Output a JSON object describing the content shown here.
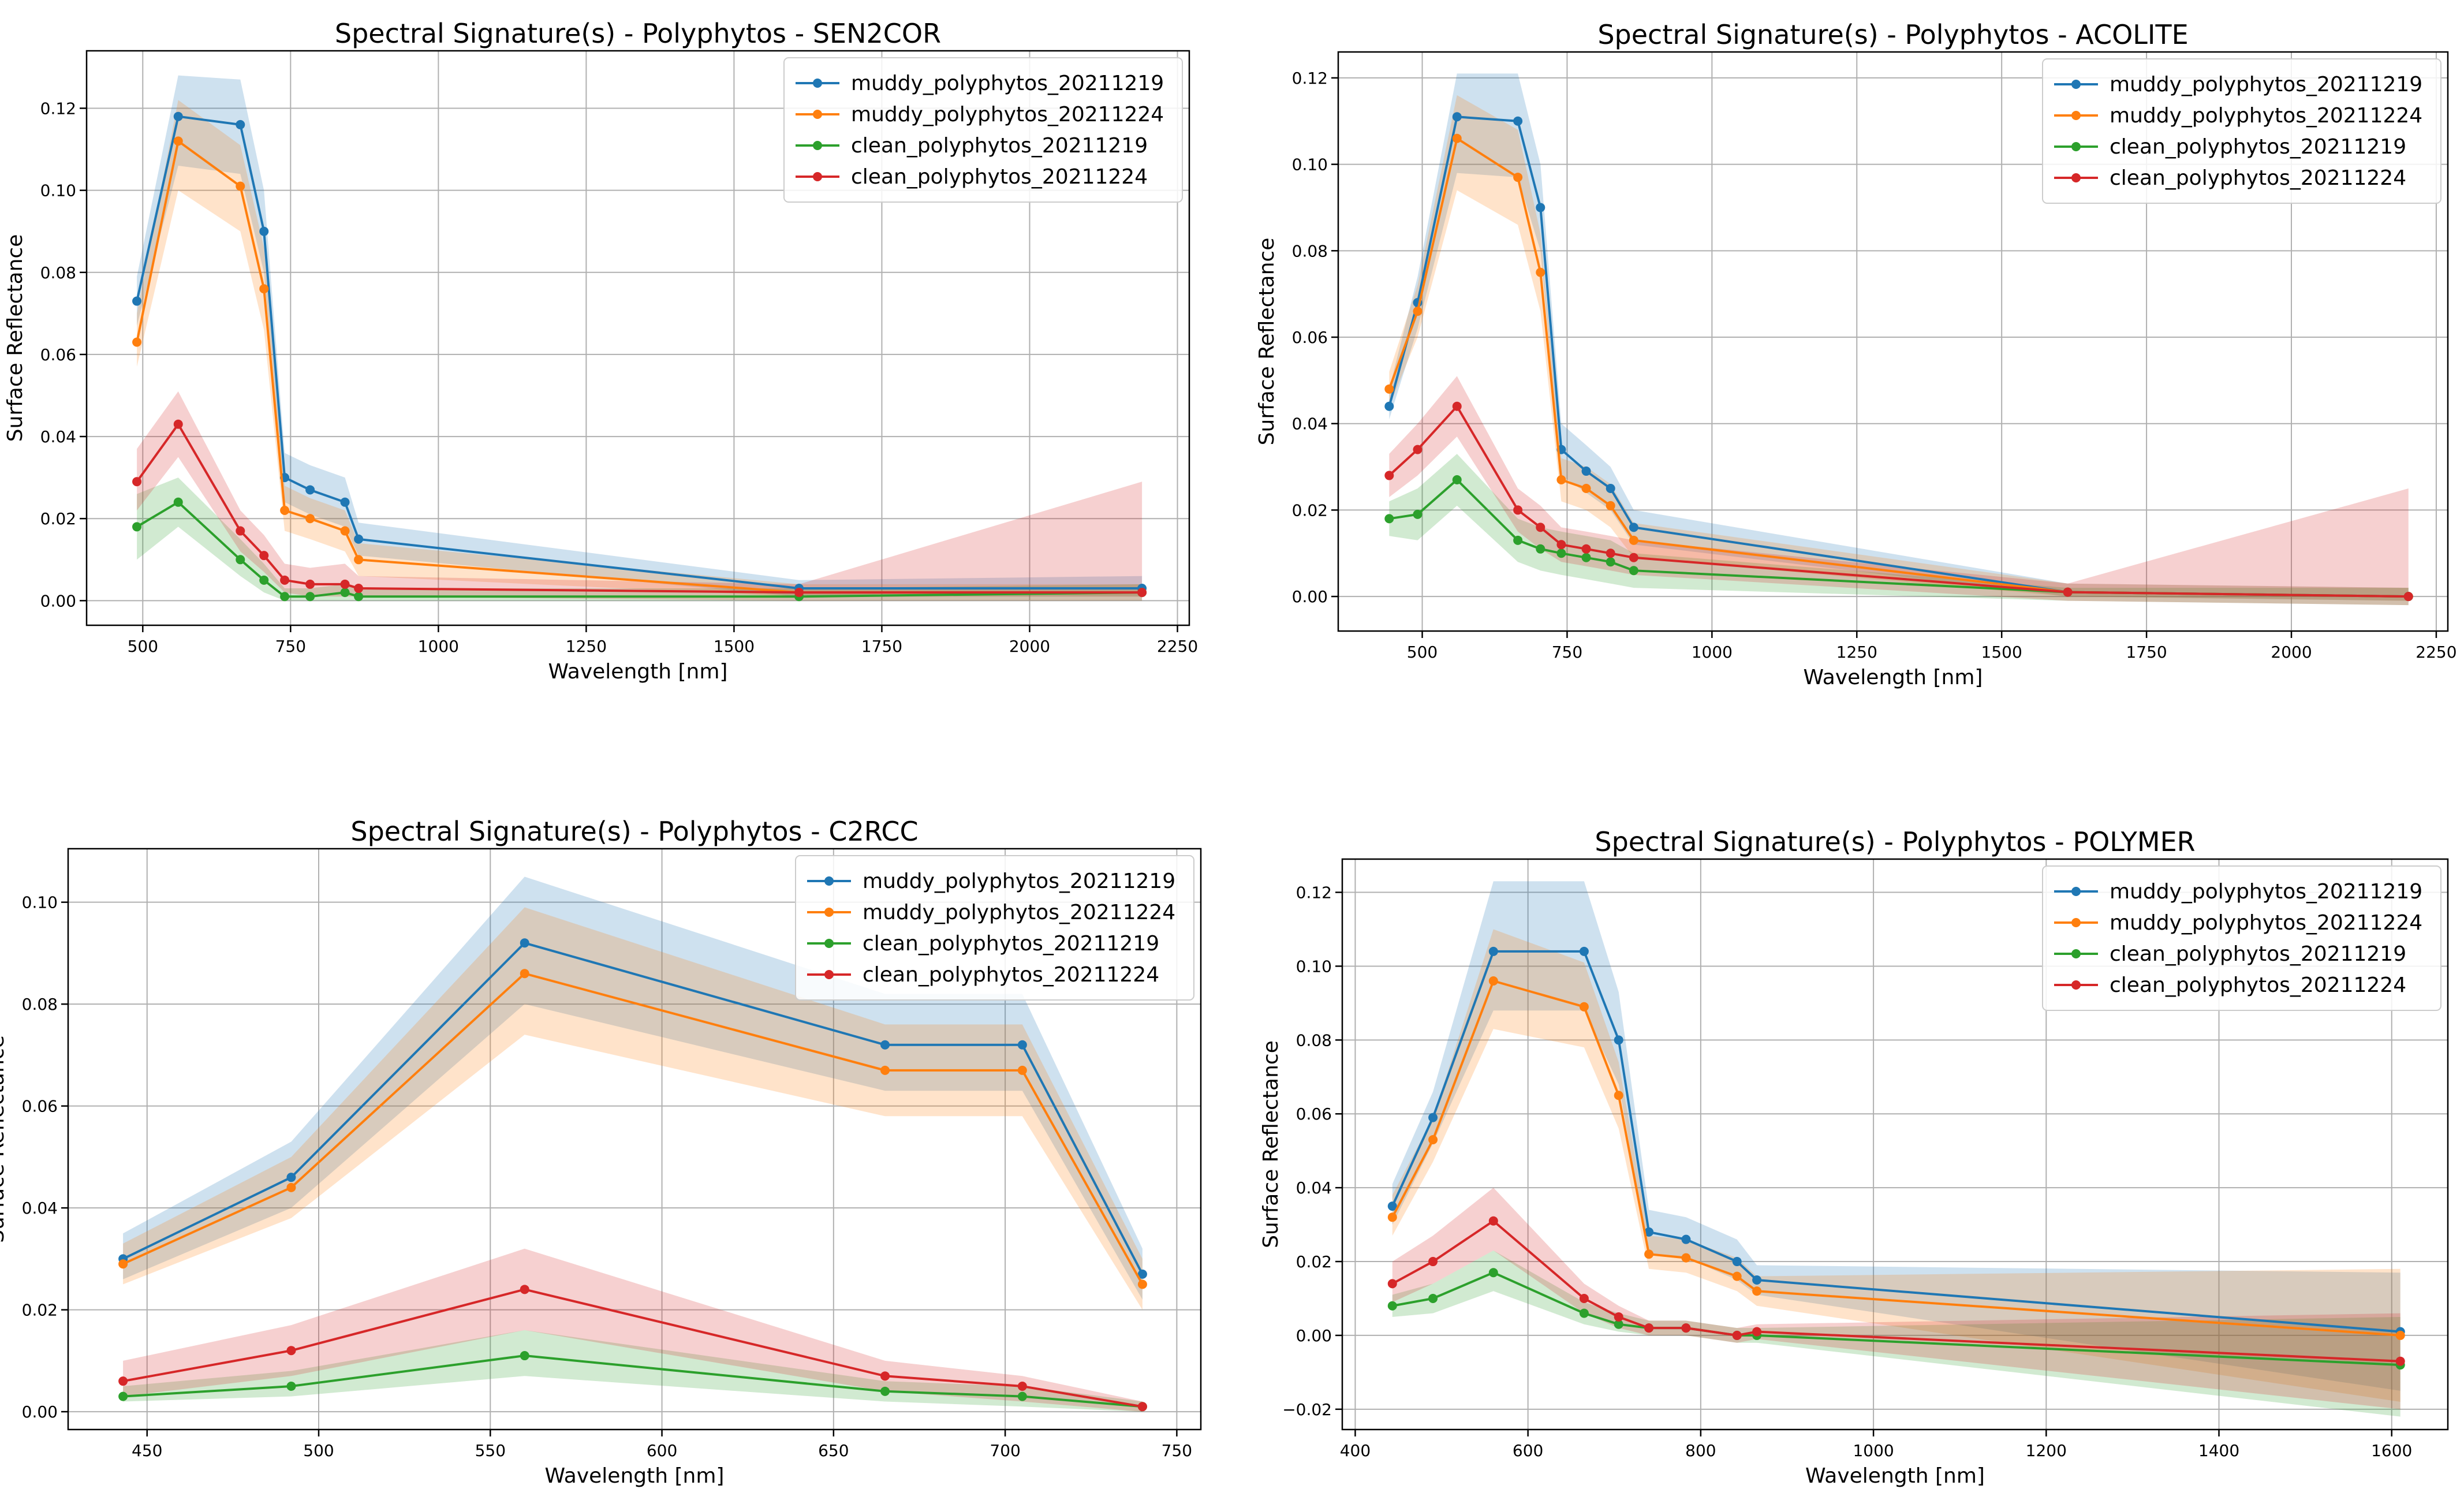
{
  "chart_data": [
    {
      "type": "line",
      "title": "Spectral Signature(s) - Polyphytos - SEN2COR",
      "xlabel": "Wavelength [nm]",
      "ylabel": "Surface Reflectance",
      "xlim": [
        405,
        2270
      ],
      "ylim": [
        -0.006,
        0.134
      ],
      "xticks": [
        500,
        750,
        1000,
        1250,
        1500,
        1750,
        2000,
        2250
      ],
      "xtick_labels": [
        "500",
        "750",
        "1000",
        "1250",
        "1500",
        "1750",
        "2000",
        "2250"
      ],
      "yticks": [
        0.0,
        0.02,
        0.04,
        0.06,
        0.08,
        0.1,
        0.12
      ],
      "ytick_labels": [
        "0.00",
        "0.02",
        "0.04",
        "0.06",
        "0.08",
        "0.10",
        "0.12"
      ],
      "grid": true,
      "legend": "top-right",
      "x": [
        490,
        560,
        665,
        705,
        740,
        783,
        842,
        865,
        1610,
        2190
      ],
      "series": [
        {
          "name": "muddy_polyphytos_20211219",
          "color": "#1f77b4",
          "values": [
            0.073,
            0.118,
            0.116,
            0.09,
            0.03,
            0.027,
            0.024,
            0.015,
            0.003,
            0.003
          ],
          "lower": [
            0.067,
            0.106,
            0.104,
            0.08,
            0.024,
            0.021,
            0.018,
            0.011,
            0.001,
            0.001
          ],
          "upper": [
            0.079,
            0.128,
            0.127,
            0.1,
            0.036,
            0.033,
            0.03,
            0.019,
            0.005,
            0.006
          ]
        },
        {
          "name": "muddy_polyphytos_20211224",
          "color": "#ff7f0e",
          "values": [
            0.063,
            0.112,
            0.101,
            0.076,
            0.022,
            0.02,
            0.017,
            0.01,
            0.002,
            0.002
          ],
          "lower": [
            0.057,
            0.1,
            0.09,
            0.066,
            0.017,
            0.015,
            0.012,
            0.006,
            0.001,
            0.001
          ],
          "upper": [
            0.07,
            0.122,
            0.111,
            0.086,
            0.028,
            0.025,
            0.022,
            0.014,
            0.004,
            0.004
          ]
        },
        {
          "name": "clean_polyphytos_20211219",
          "color": "#2ca02c",
          "values": [
            0.018,
            0.024,
            0.01,
            0.005,
            0.001,
            0.001,
            0.002,
            0.001,
            0.001,
            0.002
          ],
          "lower": [
            0.01,
            0.018,
            0.006,
            0.002,
            0.0,
            0.0,
            0.0,
            0.0,
            0.0,
            0.0
          ],
          "upper": [
            0.026,
            0.03,
            0.015,
            0.009,
            0.003,
            0.003,
            0.004,
            0.003,
            0.003,
            0.004
          ]
        },
        {
          "name": "clean_polyphytos_20211224",
          "color": "#d62728",
          "values": [
            0.029,
            0.043,
            0.017,
            0.011,
            0.005,
            0.004,
            0.004,
            0.003,
            0.002,
            0.002
          ],
          "lower": [
            0.022,
            0.035,
            0.012,
            0.007,
            0.002,
            0.001,
            0.001,
            0.001,
            0.0,
            0.0
          ],
          "upper": [
            0.037,
            0.051,
            0.022,
            0.016,
            0.009,
            0.008,
            0.009,
            0.006,
            0.004,
            0.029
          ]
        }
      ]
    },
    {
      "type": "line",
      "title": "Spectral Signature(s) - Polyphytos - ACOLITE",
      "xlabel": "Wavelength [nm]",
      "ylabel": "Surface Reflectance",
      "xlim": [
        355,
        2270
      ],
      "ylim": [
        -0.008,
        0.126
      ],
      "xticks": [
        500,
        750,
        1000,
        1250,
        1500,
        1750,
        2000,
        2250
      ],
      "xtick_labels": [
        "500",
        "750",
        "1000",
        "1250",
        "1500",
        "1750",
        "2000",
        "2250"
      ],
      "yticks": [
        0.0,
        0.02,
        0.04,
        0.06,
        0.08,
        0.1,
        0.12
      ],
      "ytick_labels": [
        "0.00",
        "0.02",
        "0.04",
        "0.06",
        "0.08",
        "0.10",
        "0.12"
      ],
      "grid": true,
      "legend": "top-right",
      "x": [
        443,
        492,
        560,
        665,
        704,
        740,
        783,
        825,
        865,
        1614,
        2202
      ],
      "series": [
        {
          "name": "muddy_polyphytos_20211219",
          "color": "#1f77b4",
          "values": [
            0.044,
            0.068,
            0.111,
            0.11,
            0.09,
            0.034,
            0.029,
            0.025,
            0.016,
            0.001,
            0.0
          ],
          "lower": [
            0.041,
            0.062,
            0.098,
            0.097,
            0.08,
            0.028,
            0.024,
            0.02,
            0.012,
            0.0,
            -0.001
          ],
          "upper": [
            0.048,
            0.074,
            0.121,
            0.121,
            0.1,
            0.04,
            0.035,
            0.03,
            0.02,
            0.003,
            0.002
          ]
        },
        {
          "name": "muddy_polyphytos_20211224",
          "color": "#ff7f0e",
          "values": [
            0.048,
            0.066,
            0.106,
            0.097,
            0.075,
            0.027,
            0.025,
            0.021,
            0.013,
            0.001,
            0.0
          ],
          "lower": [
            0.044,
            0.06,
            0.094,
            0.086,
            0.066,
            0.022,
            0.02,
            0.016,
            0.009,
            0.0,
            -0.001
          ],
          "upper": [
            0.052,
            0.072,
            0.116,
            0.108,
            0.084,
            0.032,
            0.03,
            0.026,
            0.017,
            0.003,
            0.002
          ]
        },
        {
          "name": "clean_polyphytos_20211219",
          "color": "#2ca02c",
          "values": [
            0.018,
            0.019,
            0.027,
            0.013,
            0.011,
            0.01,
            0.009,
            0.008,
            0.006,
            0.001,
            0.0
          ],
          "lower": [
            0.014,
            0.013,
            0.021,
            0.008,
            0.006,
            0.005,
            0.004,
            0.003,
            0.002,
            -0.001,
            -0.002
          ],
          "upper": [
            0.022,
            0.025,
            0.033,
            0.018,
            0.016,
            0.015,
            0.014,
            0.013,
            0.01,
            0.002,
            0.002
          ]
        },
        {
          "name": "clean_polyphytos_20211224",
          "color": "#d62728",
          "values": [
            0.028,
            0.034,
            0.044,
            0.02,
            0.016,
            0.012,
            0.011,
            0.01,
            0.009,
            0.001,
            0.0
          ],
          "lower": [
            0.023,
            0.028,
            0.037,
            0.015,
            0.011,
            0.008,
            0.007,
            0.006,
            0.005,
            -0.001,
            -0.002
          ],
          "upper": [
            0.033,
            0.04,
            0.051,
            0.025,
            0.021,
            0.016,
            0.015,
            0.014,
            0.013,
            0.003,
            0.025
          ]
        }
      ]
    },
    {
      "type": "line",
      "title": "Spectral Signature(s) - Polyphytos - C2RCC",
      "xlabel": "Wavelength [nm]",
      "ylabel": "Surface Reflectance",
      "xlim": [
        427,
        757
      ],
      "ylim": [
        -0.0035,
        0.1105
      ],
      "xticks": [
        450,
        500,
        550,
        600,
        650,
        700,
        750
      ],
      "xtick_labels": [
        "450",
        "500",
        "550",
        "600",
        "650",
        "700",
        "750"
      ],
      "yticks": [
        0.0,
        0.02,
        0.04,
        0.06,
        0.08,
        0.1
      ],
      "ytick_labels": [
        "0.00",
        "0.02",
        "0.04",
        "0.06",
        "0.08",
        "0.10"
      ],
      "grid": true,
      "legend": "top-right",
      "x": [
        443,
        492,
        560,
        665,
        705,
        740
      ],
      "series": [
        {
          "name": "muddy_polyphytos_20211219",
          "color": "#1f77b4",
          "values": [
            0.03,
            0.046,
            0.092,
            0.072,
            0.072,
            0.027
          ],
          "lower": [
            0.026,
            0.04,
            0.08,
            0.063,
            0.063,
            0.022
          ],
          "upper": [
            0.035,
            0.053,
            0.105,
            0.082,
            0.082,
            0.032
          ]
        },
        {
          "name": "muddy_polyphytos_20211224",
          "color": "#ff7f0e",
          "values": [
            0.029,
            0.044,
            0.086,
            0.067,
            0.067,
            0.025
          ],
          "lower": [
            0.025,
            0.038,
            0.074,
            0.058,
            0.058,
            0.02
          ],
          "upper": [
            0.033,
            0.05,
            0.099,
            0.076,
            0.076,
            0.03
          ]
        },
        {
          "name": "clean_polyphytos_20211219",
          "color": "#2ca02c",
          "values": [
            0.003,
            0.005,
            0.011,
            0.004,
            0.003,
            0.001
          ],
          "lower": [
            0.002,
            0.003,
            0.007,
            0.002,
            0.001,
            0.0
          ],
          "upper": [
            0.005,
            0.008,
            0.016,
            0.006,
            0.005,
            0.002
          ]
        },
        {
          "name": "clean_polyphytos_20211224",
          "color": "#d62728",
          "values": [
            0.006,
            0.012,
            0.024,
            0.007,
            0.005,
            0.001
          ],
          "lower": [
            0.003,
            0.007,
            0.016,
            0.004,
            0.002,
            0.0
          ],
          "upper": [
            0.01,
            0.017,
            0.032,
            0.01,
            0.007,
            0.002
          ]
        }
      ]
    },
    {
      "type": "line",
      "title": "Spectral Signature(s) - Polyphytos - POLYMER",
      "xlabel": "Wavelength [nm]",
      "ylabel": "Surface Reflectance",
      "xlim": [
        385,
        1665
      ],
      "ylim": [
        -0.0255,
        0.129
      ],
      "xticks": [
        400,
        600,
        800,
        1000,
        1200,
        1400,
        1600
      ],
      "xtick_labels": [
        "400",
        "600",
        "800",
        "1000",
        "1200",
        "1400",
        "1600"
      ],
      "yticks": [
        -0.02,
        0.0,
        0.02,
        0.04,
        0.06,
        0.08,
        0.1,
        0.12
      ],
      "ytick_labels": [
        "−0.02",
        "0.00",
        "0.02",
        "0.04",
        "0.06",
        "0.08",
        "0.10",
        "0.12"
      ],
      "grid": true,
      "legend": "top-right",
      "x": [
        443,
        490,
        560,
        665,
        705,
        740,
        783,
        842,
        865,
        1610
      ],
      "series": [
        {
          "name": "muddy_polyphytos_20211219",
          "color": "#1f77b4",
          "values": [
            0.035,
            0.059,
            0.104,
            0.104,
            0.08,
            0.028,
            0.026,
            0.02,
            0.015,
            0.001
          ],
          "lower": [
            0.03,
            0.052,
            0.088,
            0.088,
            0.068,
            0.022,
            0.021,
            0.015,
            0.011,
            -0.015
          ],
          "upper": [
            0.041,
            0.066,
            0.123,
            0.123,
            0.093,
            0.034,
            0.032,
            0.026,
            0.019,
            0.017
          ]
        },
        {
          "name": "muddy_polyphytos_20211224",
          "color": "#ff7f0e",
          "values": [
            0.032,
            0.053,
            0.096,
            0.089,
            0.065,
            0.022,
            0.021,
            0.016,
            0.012,
            0.0
          ],
          "lower": [
            0.027,
            0.047,
            0.083,
            0.078,
            0.056,
            0.018,
            0.017,
            0.012,
            0.008,
            -0.018
          ],
          "upper": [
            0.038,
            0.059,
            0.11,
            0.101,
            0.074,
            0.027,
            0.026,
            0.021,
            0.016,
            0.018
          ]
        },
        {
          "name": "clean_polyphytos_20211219",
          "color": "#2ca02c",
          "values": [
            0.008,
            0.01,
            0.017,
            0.006,
            0.003,
            0.002,
            0.002,
            0.0,
            0.0,
            -0.008
          ],
          "lower": [
            0.005,
            0.006,
            0.012,
            0.003,
            0.001,
            0.0,
            0.0,
            -0.002,
            -0.002,
            -0.022
          ],
          "upper": [
            0.011,
            0.014,
            0.023,
            0.009,
            0.006,
            0.004,
            0.004,
            0.002,
            0.002,
            0.005
          ]
        },
        {
          "name": "clean_polyphytos_20211224",
          "color": "#d62728",
          "values": [
            0.014,
            0.02,
            0.031,
            0.01,
            0.005,
            0.002,
            0.002,
            0.0,
            0.001,
            -0.007
          ],
          "lower": [
            0.009,
            0.014,
            0.023,
            0.006,
            0.002,
            0.0,
            0.0,
            -0.002,
            -0.001,
            -0.02
          ],
          "upper": [
            0.02,
            0.027,
            0.04,
            0.014,
            0.008,
            0.004,
            0.004,
            0.002,
            0.003,
            0.006
          ]
        }
      ]
    }
  ]
}
